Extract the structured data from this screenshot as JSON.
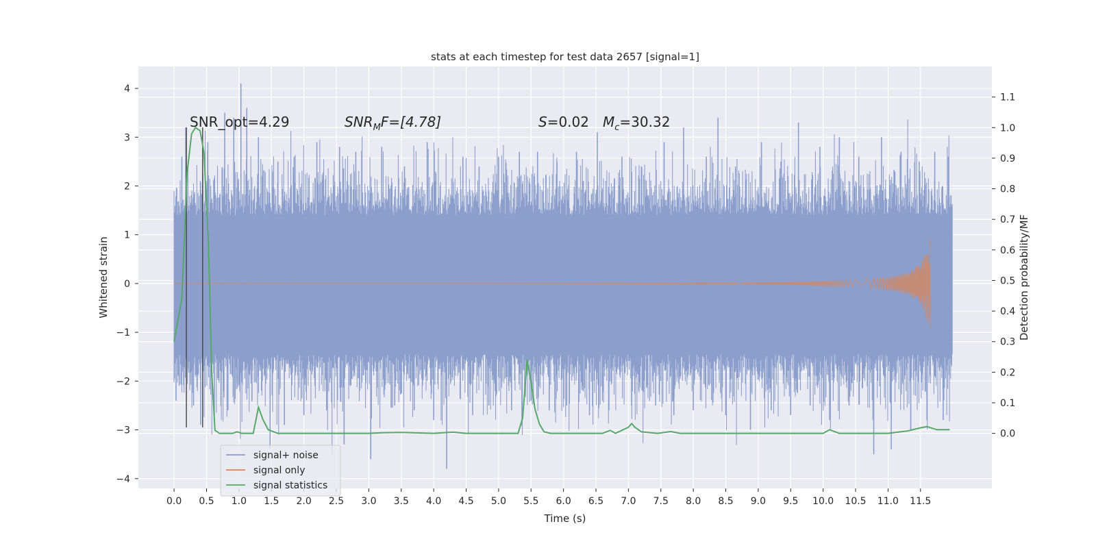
{
  "chart_data": {
    "type": "line",
    "title": "stats at each timestep for test data 2657 [signal=1]",
    "xlabel": "Time (s)",
    "ylabel": "Whitened strain",
    "y2label": "Detection probability/MF",
    "xlim": [
      -0.55,
      12.6
    ],
    "ylim": [
      -4.2,
      4.45
    ],
    "y2lim": [
      -0.18,
      1.2
    ],
    "x_ticks": [
      "0.0",
      "0.5",
      "1.0",
      "1.5",
      "2.0",
      "2.5",
      "3.0",
      "3.5",
      "4.0",
      "4.5",
      "5.0",
      "5.5",
      "6.0",
      "6.5",
      "7.0",
      "7.5",
      "8.0",
      "8.5",
      "9.0",
      "9.5",
      "10.0",
      "10.5",
      "11.0",
      "11.5"
    ],
    "y_ticks": [
      "4",
      "3",
      "2",
      "1",
      "0",
      "−1",
      "−2",
      "−3",
      "−4"
    ],
    "y2_ticks": [
      "1.1",
      "1.0",
      "0.9",
      "0.8",
      "0.7",
      "0.6",
      "0.5",
      "0.4",
      "0.3",
      "0.2",
      "0.1",
      "0.0"
    ],
    "grid": true,
    "legend_position": "lower-left",
    "annotations": {
      "snr_opt": "SNR_opt=4.29",
      "snr_mf_main": "SNR",
      "snr_mf_sub": "M",
      "snr_mf_rest": "F=[4.78]",
      "s_main": "S",
      "s_rest": "=0.02",
      "mc_main": "M",
      "mc_sub": "c",
      "mc_rest": "=30.32"
    },
    "vertical_lines_x": [
      0.19,
      0.44
    ],
    "series": [
      {
        "name": "signal+ noise",
        "color": "#8c9fcc",
        "axis": "left",
        "x_range": [
          0.0,
          11.99
        ],
        "typical_band": [
          -1.45,
          1.4
        ],
        "spikes": [
          {
            "x": 0.03,
            "y": -2.4
          },
          {
            "x": 0.12,
            "y": 2.6
          },
          {
            "x": 0.18,
            "y": 3.2
          },
          {
            "x": 0.3,
            "y": -2.5
          },
          {
            "x": 0.41,
            "y": -2.9
          },
          {
            "x": 0.52,
            "y": 2.9
          },
          {
            "x": 0.62,
            "y": -2.7
          },
          {
            "x": 0.78,
            "y": 3.5
          },
          {
            "x": 0.83,
            "y": -2.6
          },
          {
            "x": 0.92,
            "y": 3.4
          },
          {
            "x": 1.03,
            "y": 4.1
          },
          {
            "x": 1.12,
            "y": 3.6
          },
          {
            "x": 1.2,
            "y": -2.4
          },
          {
            "x": 1.3,
            "y": 3.0
          },
          {
            "x": 1.48,
            "y": -3.4
          },
          {
            "x": 1.6,
            "y": 2.5
          },
          {
            "x": 1.7,
            "y": -2.9
          },
          {
            "x": 1.85,
            "y": 2.6
          },
          {
            "x": 2.0,
            "y": -2.7
          },
          {
            "x": 2.2,
            "y": 2.9
          },
          {
            "x": 2.35,
            "y": -2.6
          },
          {
            "x": 2.55,
            "y": 2.8
          },
          {
            "x": 2.62,
            "y": -3.3
          },
          {
            "x": 2.8,
            "y": 2.7
          },
          {
            "x": 3.03,
            "y": -3.6
          },
          {
            "x": 3.2,
            "y": 2.8
          },
          {
            "x": 3.4,
            "y": -2.5
          },
          {
            "x": 3.55,
            "y": 2.4
          },
          {
            "x": 3.7,
            "y": -2.6
          },
          {
            "x": 3.9,
            "y": 2.9
          },
          {
            "x": 4.0,
            "y": -2.8
          },
          {
            "x": 4.2,
            "y": -3.8
          },
          {
            "x": 4.45,
            "y": 2.6
          },
          {
            "x": 4.6,
            "y": -2.7
          },
          {
            "x": 4.7,
            "y": 2.4
          },
          {
            "x": 4.85,
            "y": -2.5
          },
          {
            "x": 5.0,
            "y": 2.6
          },
          {
            "x": 5.2,
            "y": -2.6
          },
          {
            "x": 5.32,
            "y": 2.7
          },
          {
            "x": 5.5,
            "y": -2.4
          },
          {
            "x": 5.6,
            "y": 2.7
          },
          {
            "x": 5.78,
            "y": -2.6
          },
          {
            "x": 5.9,
            "y": 2.5
          },
          {
            "x": 6.05,
            "y": -2.5
          },
          {
            "x": 6.2,
            "y": 2.7
          },
          {
            "x": 6.4,
            "y": -2.7
          },
          {
            "x": 6.52,
            "y": 3.1
          },
          {
            "x": 6.7,
            "y": -2.6
          },
          {
            "x": 6.9,
            "y": 2.6
          },
          {
            "x": 7.05,
            "y": -2.5
          },
          {
            "x": 7.2,
            "y": 2.4
          },
          {
            "x": 7.42,
            "y": -2.5
          },
          {
            "x": 7.55,
            "y": 2.9
          },
          {
            "x": 7.7,
            "y": -2.7
          },
          {
            "x": 7.85,
            "y": 3.2
          },
          {
            "x": 8.0,
            "y": -2.6
          },
          {
            "x": 8.2,
            "y": 2.6
          },
          {
            "x": 8.38,
            "y": 3.4
          },
          {
            "x": 8.5,
            "y": -2.7
          },
          {
            "x": 8.65,
            "y": 2.4
          },
          {
            "x": 8.88,
            "y": -3.0
          },
          {
            "x": 9.05,
            "y": 2.9
          },
          {
            "x": 9.2,
            "y": -2.6
          },
          {
            "x": 9.35,
            "y": 2.5
          },
          {
            "x": 9.5,
            "y": -2.7
          },
          {
            "x": 9.62,
            "y": 3.3
          },
          {
            "x": 9.8,
            "y": -2.5
          },
          {
            "x": 9.95,
            "y": 2.8
          },
          {
            "x": 10.1,
            "y": -2.8
          },
          {
            "x": 10.25,
            "y": 3.0
          },
          {
            "x": 10.4,
            "y": -2.5
          },
          {
            "x": 10.55,
            "y": 2.6
          },
          {
            "x": 10.78,
            "y": -3.5
          },
          {
            "x": 10.9,
            "y": 3.0
          },
          {
            "x": 11.05,
            "y": -3.4
          },
          {
            "x": 11.2,
            "y": 2.7
          },
          {
            "x": 11.35,
            "y": -3.0
          },
          {
            "x": 11.48,
            "y": 2.5
          },
          {
            "x": 11.6,
            "y": -2.8
          },
          {
            "x": 11.72,
            "y": 2.7
          },
          {
            "x": 11.85,
            "y": -2.8
          },
          {
            "x": 11.93,
            "y": 2.6
          }
        ]
      },
      {
        "name": "signal only",
        "color": "#dd8452",
        "axis": "left",
        "x_range": [
          0.0,
          11.65
        ],
        "max_amplitude": 0.95,
        "envelope": [
          {
            "x": 0.0,
            "y": 0.0
          },
          {
            "x": 8.0,
            "y": 0.01
          },
          {
            "x": 9.5,
            "y": 0.03
          },
          {
            "x": 10.5,
            "y": 0.07
          },
          {
            "x": 11.0,
            "y": 0.13
          },
          {
            "x": 11.3,
            "y": 0.22
          },
          {
            "x": 11.5,
            "y": 0.42
          },
          {
            "x": 11.62,
            "y": 0.8
          },
          {
            "x": 11.65,
            "y": 0.95
          }
        ]
      },
      {
        "name": "signal statistics",
        "color": "#55a868",
        "axis": "right",
        "points": [
          {
            "x": 0.0,
            "y": 0.3
          },
          {
            "x": 0.12,
            "y": 0.44
          },
          {
            "x": 0.2,
            "y": 0.85
          },
          {
            "x": 0.27,
            "y": 0.98
          },
          {
            "x": 0.33,
            "y": 1.0
          },
          {
            "x": 0.4,
            "y": 0.99
          },
          {
            "x": 0.46,
            "y": 0.92
          },
          {
            "x": 0.53,
            "y": 0.62
          },
          {
            "x": 0.58,
            "y": 0.2
          },
          {
            "x": 0.63,
            "y": 0.01
          },
          {
            "x": 0.7,
            "y": 0.0
          },
          {
            "x": 0.9,
            "y": 0.0
          },
          {
            "x": 0.97,
            "y": 0.005
          },
          {
            "x": 1.05,
            "y": 0.0
          },
          {
            "x": 1.22,
            "y": 0.0
          },
          {
            "x": 1.3,
            "y": 0.085
          },
          {
            "x": 1.37,
            "y": 0.045
          },
          {
            "x": 1.45,
            "y": 0.012
          },
          {
            "x": 1.6,
            "y": 0.0
          },
          {
            "x": 3.0,
            "y": 0.0
          },
          {
            "x": 3.2,
            "y": 0.002
          },
          {
            "x": 3.5,
            "y": 0.003
          },
          {
            "x": 4.0,
            "y": 0.0
          },
          {
            "x": 4.3,
            "y": 0.004
          },
          {
            "x": 4.5,
            "y": 0.0
          },
          {
            "x": 5.3,
            "y": 0.0
          },
          {
            "x": 5.37,
            "y": 0.05
          },
          {
            "x": 5.44,
            "y": 0.24
          },
          {
            "x": 5.5,
            "y": 0.17
          },
          {
            "x": 5.56,
            "y": 0.08
          },
          {
            "x": 5.63,
            "y": 0.03
          },
          {
            "x": 5.7,
            "y": 0.005
          },
          {
            "x": 5.8,
            "y": 0.0
          },
          {
            "x": 6.6,
            "y": 0.0
          },
          {
            "x": 6.72,
            "y": 0.01
          },
          {
            "x": 6.8,
            "y": 0.0
          },
          {
            "x": 6.9,
            "y": 0.01
          },
          {
            "x": 7.0,
            "y": 0.02
          },
          {
            "x": 7.05,
            "y": 0.032
          },
          {
            "x": 7.1,
            "y": 0.02
          },
          {
            "x": 7.2,
            "y": 0.005
          },
          {
            "x": 7.45,
            "y": 0.0
          },
          {
            "x": 7.65,
            "y": 0.006
          },
          {
            "x": 7.8,
            "y": 0.0
          },
          {
            "x": 10.0,
            "y": 0.0
          },
          {
            "x": 10.1,
            "y": 0.012
          },
          {
            "x": 10.25,
            "y": 0.0
          },
          {
            "x": 11.0,
            "y": 0.0
          },
          {
            "x": 11.3,
            "y": 0.008
          },
          {
            "x": 11.5,
            "y": 0.018
          },
          {
            "x": 11.6,
            "y": 0.022
          },
          {
            "x": 11.75,
            "y": 0.012
          },
          {
            "x": 11.95,
            "y": 0.012
          }
        ]
      }
    ]
  }
}
